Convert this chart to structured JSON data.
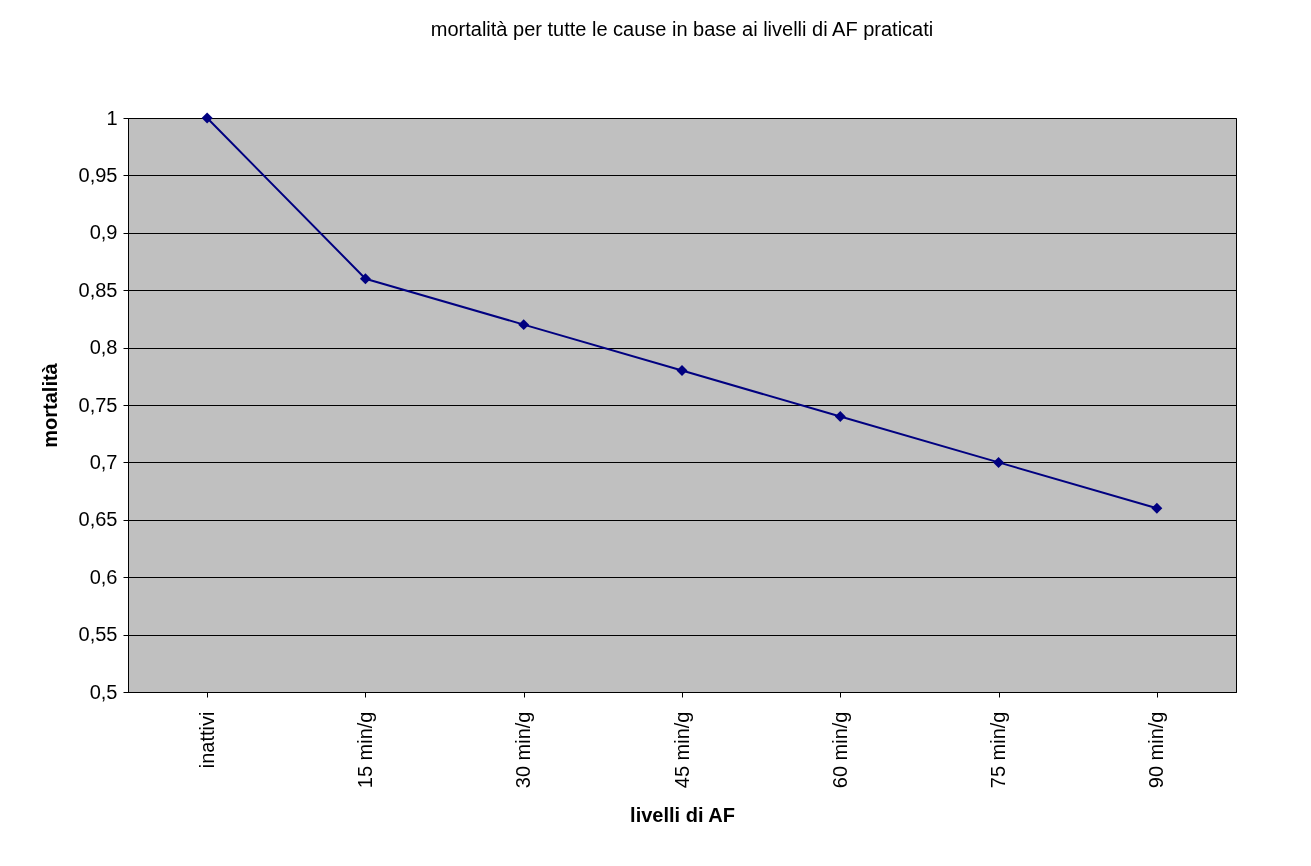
{
  "chart_data": {
    "type": "line",
    "title": "mortalità per tutte le cause in base ai livelli di AF praticati",
    "xlabel": "livelli di AF",
    "ylabel": "mortalità",
    "categories": [
      "inattivi",
      "15 min/g",
      "30 min/g",
      "45 min/g",
      "60 min/g",
      "75 min/g",
      "90 min/g"
    ],
    "series": [
      {
        "color": "#000080",
        "values": [
          1,
          0.86,
          0.82,
          0.78,
          0.74,
          0.7,
          0.66
        ]
      }
    ],
    "ylim": [
      0.5,
      1
    ],
    "yticks": [
      {
        "value": 0.5,
        "label": "0,5"
      },
      {
        "value": 0.55,
        "label": "0,55"
      },
      {
        "value": 0.6,
        "label": "0,6"
      },
      {
        "value": 0.65,
        "label": "0,65"
      },
      {
        "value": 0.7,
        "label": "0,7"
      },
      {
        "value": 0.75,
        "label": "0,75"
      },
      {
        "value": 0.8,
        "label": "0,8"
      },
      {
        "value": 0.85,
        "label": "0,85"
      },
      {
        "value": 0.9,
        "label": "0,9"
      },
      {
        "value": 0.95,
        "label": "0,95"
      },
      1
    ],
    "grid": "y",
    "marker": "diamond",
    "line_style": "solid",
    "legend": false
  }
}
